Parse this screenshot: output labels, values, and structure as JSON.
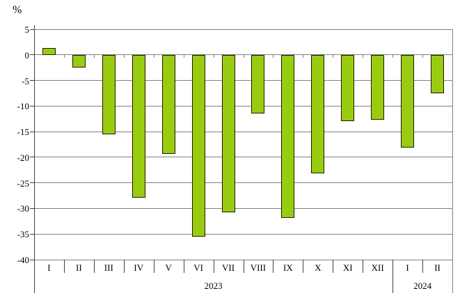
{
  "chart_data": {
    "type": "bar",
    "title": "",
    "unit_label": "%",
    "xlabel": "",
    "ylabel": "%",
    "categories": [
      "I",
      "II",
      "III",
      "IV",
      "V",
      "VI",
      "VII",
      "VIII",
      "IX",
      "X",
      "XI",
      "XII",
      "I",
      "II"
    ],
    "year_groups": [
      {
        "label": "2023",
        "start": 0,
        "count": 12
      },
      {
        "label": "2024",
        "start": 12,
        "count": 2
      }
    ],
    "values": [
      1.3,
      -2.5,
      -15.5,
      -27.9,
      -19.4,
      -35.5,
      -30.8,
      -11.5,
      -31.9,
      -23.2,
      -13.0,
      -12.7,
      -18.1,
      -7.5
    ],
    "ylim": [
      -40,
      5
    ],
    "ytick_step": 5,
    "ytick_labels": [
      "5",
      "0",
      "-5",
      "-10",
      "-15",
      "-20",
      "-25",
      "-30",
      "-35",
      "-40"
    ],
    "grid": true,
    "legend_position": "none",
    "colors": {
      "bar_fill": "#99CC11",
      "bar_border": "#1a1a00",
      "gridline": "#808080",
      "axis": "#404040",
      "text": "#000000",
      "background": "#FFFFFF"
    }
  }
}
